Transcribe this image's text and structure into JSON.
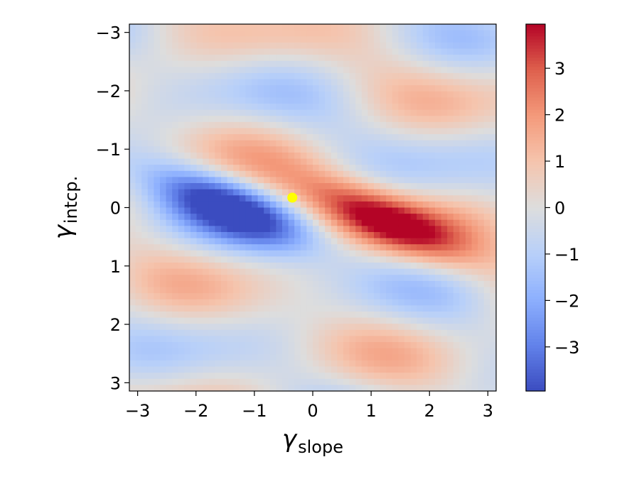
{
  "chart_data": {
    "type": "heatmap",
    "title": "",
    "xlabel": {
      "symbol": "γ",
      "subscript": "slope"
    },
    "ylabel": {
      "symbol": "γ",
      "subscript": "intcp."
    },
    "xlim": [
      -3.14159,
      3.14159
    ],
    "ylim": [
      3.14159,
      -3.14159
    ],
    "y_axis_inverted": true,
    "x_ticks": [
      -3,
      -2,
      -1,
      0,
      1,
      2,
      3
    ],
    "x_tick_labels": [
      "−3",
      "−2",
      "−1",
      "0",
      "1",
      "2",
      "3"
    ],
    "y_ticks": [
      -3,
      -2,
      -1,
      0,
      1,
      2,
      3
    ],
    "y_tick_labels": [
      "−3",
      "−2",
      "−1",
      "0",
      "1",
      "2",
      "3"
    ],
    "grid": false,
    "colormap": "coolwarm",
    "color_range": [
      -3.95,
      3.95
    ],
    "colorbar_ticks": [
      3,
      2,
      1,
      0,
      -1,
      -2,
      -3
    ],
    "colorbar_tick_labels": [
      "3",
      "2",
      "1",
      "0",
      "−1",
      "−2",
      "−3"
    ],
    "field_description": "smooth periodic field: negative basin centred near (−1.4, 0.0), positive peak centred near (1.2, 0.2), diagonal alternating stripes elsewhere",
    "extremes": [
      {
        "x": -1.4,
        "y": 0.0,
        "value": -3.9
      },
      {
        "x": 1.2,
        "y": 0.2,
        "value": 3.9
      }
    ],
    "marker": {
      "x": -0.35,
      "y": -0.17,
      "color": "#ffff00"
    }
  }
}
